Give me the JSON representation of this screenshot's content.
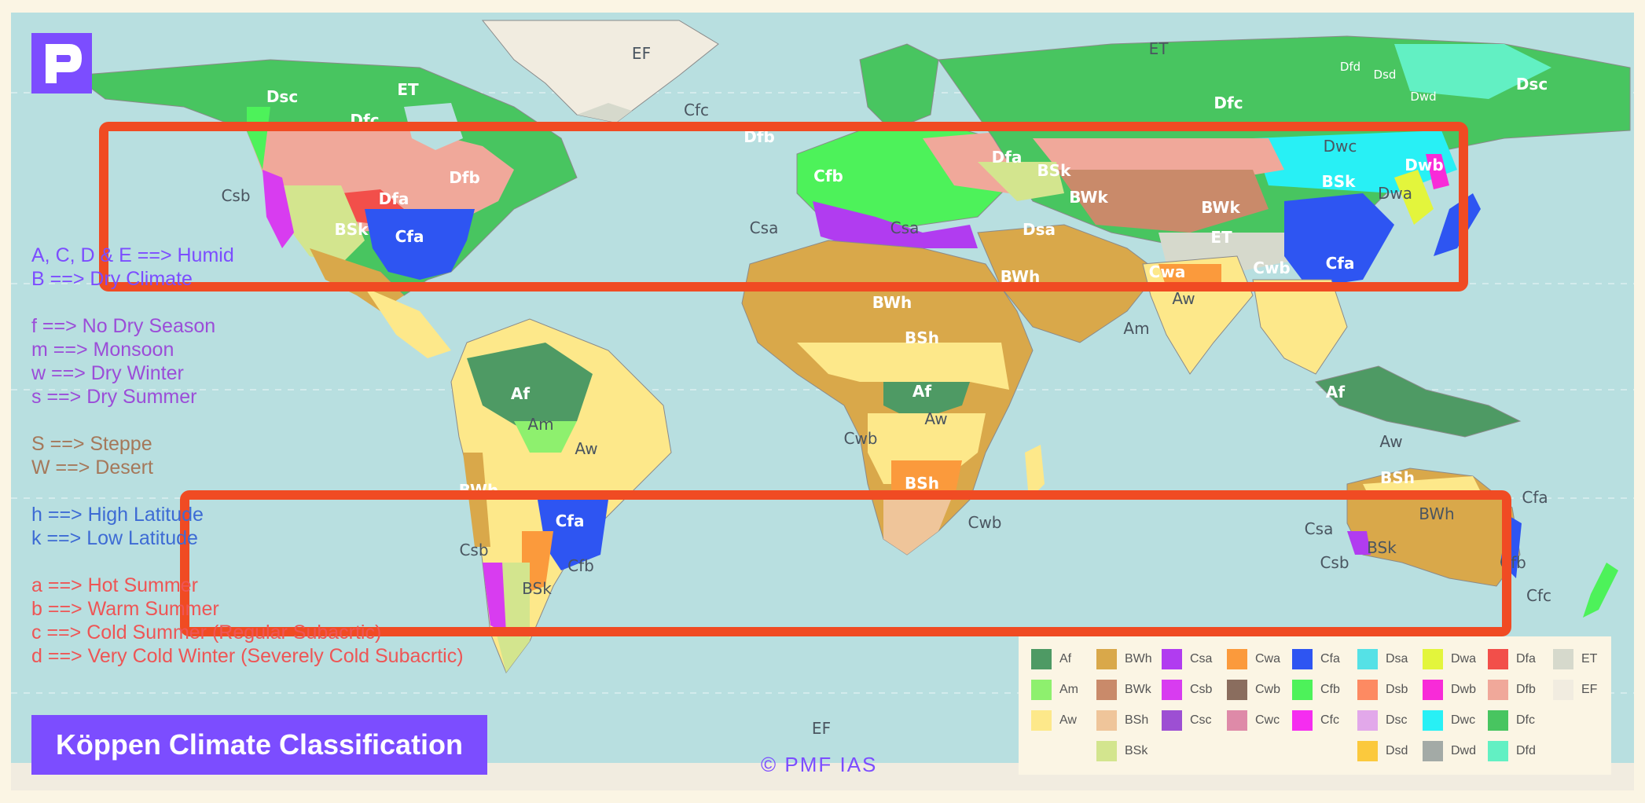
{
  "logo_letter": "P",
  "title": "Köppen Climate Classification",
  "copyright": "© PMF IAS",
  "notes": [
    {
      "text": "A, C, D & E ==> Humid",
      "color": "#7c4dff"
    },
    {
      "text": "B ==> Dry Climate",
      "color": "#7c4dff"
    },
    {
      "text": "",
      "color": "#7c4dff"
    },
    {
      "text": "f ==> No Dry Season",
      "color": "#9b4dd8"
    },
    {
      "text": "m ==> Monsoon",
      "color": "#9b4dd8"
    },
    {
      "text": "w ==> Dry Winter",
      "color": "#9b4dd8"
    },
    {
      "text": "s ==> Dry Summer",
      "color": "#9b4dd8"
    },
    {
      "text": "",
      "color": "#9b4dd8"
    },
    {
      "text": "S ==> Steppe",
      "color": "#a5785a"
    },
    {
      "text": "W ==> Desert",
      "color": "#a5785a"
    },
    {
      "text": "",
      "color": "#3d6bd4"
    },
    {
      "text": "h ==> High Latitude",
      "color": "#3d6bd4"
    },
    {
      "text": "k ==> Low Latitude",
      "color": "#3d6bd4"
    },
    {
      "text": "",
      "color": "#ee5555"
    },
    {
      "text": "a ==> Hot Summer",
      "color": "#ee5555"
    },
    {
      "text": "b ==> Warm Summer",
      "color": "#ee5555"
    },
    {
      "text": "c ==> Cold Summer (Regular Subacrtic)",
      "color": "#ee5555"
    },
    {
      "text": "d ==> Very Cold Winter (Severely Cold Subacrtic)",
      "color": "#ee5555"
    }
  ],
  "legend": [
    {
      "col": 0,
      "row": 0,
      "code": "Af",
      "color": "#4e9a64"
    },
    {
      "col": 0,
      "row": 1,
      "code": "Am",
      "color": "#8ef06e"
    },
    {
      "col": 0,
      "row": 2,
      "code": "Aw",
      "color": "#fde88a"
    },
    {
      "col": 1,
      "row": 0,
      "code": "BWh",
      "color": "#d9a84a"
    },
    {
      "col": 1,
      "row": 1,
      "code": "BWk",
      "color": "#c98a6a"
    },
    {
      "col": 1,
      "row": 2,
      "code": "BSh",
      "color": "#efc59a"
    },
    {
      "col": 1,
      "row": 3,
      "code": "BSk",
      "color": "#d3e58e"
    },
    {
      "col": 2,
      "row": 0,
      "code": "Csa",
      "color": "#b13cf0"
    },
    {
      "col": 2,
      "row": 1,
      "code": "Csb",
      "color": "#d83cf0"
    },
    {
      "col": 2,
      "row": 2,
      "code": "Csc",
      "color": "#9d4fd3"
    },
    {
      "col": 3,
      "row": 0,
      "code": "Cwa",
      "color": "#fb9a3c"
    },
    {
      "col": 3,
      "row": 1,
      "code": "Cwb",
      "color": "#8a6d5e"
    },
    {
      "col": 3,
      "row": 2,
      "code": "Cwc",
      "color": "#de8aa8"
    },
    {
      "col": 4,
      "row": 0,
      "code": "Cfa",
      "color": "#2e55f2"
    },
    {
      "col": 4,
      "row": 1,
      "code": "Cfb",
      "color": "#4df25a"
    },
    {
      "col": 4,
      "row": 2,
      "code": "Cfc",
      "color": "#f52df0"
    },
    {
      "col": 5,
      "row": 0,
      "code": "Dsa",
      "color": "#55e1e6"
    },
    {
      "col": 5,
      "row": 1,
      "code": "Dsb",
      "color": "#fd8a62"
    },
    {
      "col": 5,
      "row": 2,
      "code": "Dsc",
      "color": "#e2a8ea"
    },
    {
      "col": 5,
      "row": 3,
      "code": "Dsd",
      "color": "#fbc93d"
    },
    {
      "col": 6,
      "row": 0,
      "code": "Dwa",
      "color": "#e3f53c"
    },
    {
      "col": 6,
      "row": 1,
      "code": "Dwb",
      "color": "#f82bd8"
    },
    {
      "col": 6,
      "row": 2,
      "code": "Dwc",
      "color": "#28f0f5"
    },
    {
      "col": 6,
      "row": 3,
      "code": "Dwd",
      "color": "#a3aaa6"
    },
    {
      "col": 7,
      "row": 0,
      "code": "Dfa",
      "color": "#f24f4a"
    },
    {
      "col": 7,
      "row": 1,
      "code": "Dfb",
      "color": "#f0a89a"
    },
    {
      "col": 7,
      "row": 2,
      "code": "Dfc",
      "color": "#48c560"
    },
    {
      "col": 7,
      "row": 3,
      "code": "Dfd",
      "color": "#62f0c3"
    },
    {
      "col": 8,
      "row": 0,
      "code": "ET",
      "color": "#d6d9cc"
    },
    {
      "col": 8,
      "row": 1,
      "code": "EF",
      "color": "#f1ece0"
    }
  ],
  "map_labels": [
    {
      "t": "EF",
      "s": "d"
    },
    {
      "t": "ET",
      "s": "d"
    },
    {
      "t": "Dfd",
      "s": "wn"
    },
    {
      "t": "Dsd",
      "s": "wn"
    },
    {
      "t": "Dwd",
      "s": "wn"
    },
    {
      "t": "Dsc",
      "s": "w"
    },
    {
      "t": "Dsc",
      "s": "w"
    },
    {
      "t": "ET",
      "s": "w"
    },
    {
      "t": "Dfc",
      "s": "w"
    },
    {
      "t": "Cfc",
      "s": "d"
    },
    {
      "t": "Dfc",
      "s": "w"
    },
    {
      "t": "Dfb",
      "s": "w"
    },
    {
      "t": "Dfa",
      "s": "w"
    },
    {
      "t": "BSk",
      "s": "w"
    },
    {
      "t": "Dwc",
      "s": "d"
    },
    {
      "t": "Dwb",
      "s": "w"
    },
    {
      "t": "BSk",
      "s": "w"
    },
    {
      "t": "Dwa",
      "s": "d"
    },
    {
      "t": "Cfb",
      "s": "w"
    },
    {
      "t": "BWk",
      "s": "w"
    },
    {
      "t": "BWk",
      "s": "w"
    },
    {
      "t": "Csb",
      "s": "d"
    },
    {
      "t": "Dfb",
      "s": "w"
    },
    {
      "t": "Dfa",
      "s": "w"
    },
    {
      "t": "BSk",
      "s": "w"
    },
    {
      "t": "Cfa",
      "s": "w"
    },
    {
      "t": "Csa",
      "s": "d"
    },
    {
      "t": "Csa",
      "s": "d"
    },
    {
      "t": "Dsa",
      "s": "w"
    },
    {
      "t": "ET",
      "s": "w"
    },
    {
      "t": "Cfa",
      "s": "w"
    },
    {
      "t": "BWh",
      "s": "w"
    },
    {
      "t": "Cwa",
      "s": "w"
    },
    {
      "t": "Cwb",
      "s": "w"
    },
    {
      "t": "BWh",
      "s": "w"
    },
    {
      "t": "Aw",
      "s": "d"
    },
    {
      "t": "Am",
      "s": "d"
    },
    {
      "t": "BSh",
      "s": "w"
    },
    {
      "t": "Af",
      "s": "w"
    },
    {
      "t": "Af",
      "s": "w"
    },
    {
      "t": "Af",
      "s": "w"
    },
    {
      "t": "Am",
      "s": "d"
    },
    {
      "t": "Aw",
      "s": "d"
    },
    {
      "t": "Aw",
      "s": "d"
    },
    {
      "t": "Cwb",
      "s": "d"
    },
    {
      "t": "Aw",
      "s": "d"
    },
    {
      "t": "BSh",
      "s": "w"
    },
    {
      "t": "BSh",
      "s": "w"
    },
    {
      "t": "BWh",
      "s": "w"
    },
    {
      "t": "Cfa",
      "s": "d"
    },
    {
      "t": "BWh",
      "s": "d"
    },
    {
      "t": "Cfa",
      "s": "w"
    },
    {
      "t": "Cwb",
      "s": "d"
    },
    {
      "t": "Csa",
      "s": "d"
    },
    {
      "t": "BSk",
      "s": "d"
    },
    {
      "t": "Csb",
      "s": "d"
    },
    {
      "t": "Cfb",
      "s": "d"
    },
    {
      "t": "Csb",
      "s": "d"
    },
    {
      "t": "Cfb",
      "s": "d"
    },
    {
      "t": "BSk",
      "s": "d"
    },
    {
      "t": "Cfc",
      "s": "d"
    },
    {
      "t": "EF",
      "s": "d"
    }
  ]
}
